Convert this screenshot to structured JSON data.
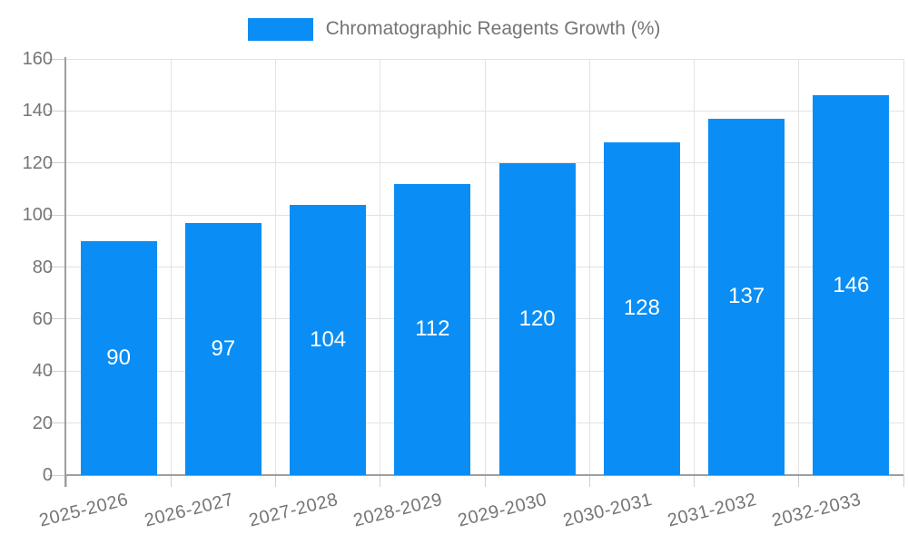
{
  "chart_data": {
    "type": "bar",
    "title": "Chromatographic Reagents Growth (%)",
    "legend_position": "top-center",
    "categories": [
      "2025-2026",
      "2026-2027",
      "2027-2028",
      "2028-2029",
      "2029-2030",
      "2030-2031",
      "2031-2032",
      "2032-2033"
    ],
    "series": [
      {
        "name": "Chromatographic Reagents Growth (%)",
        "values": [
          90,
          97,
          104,
          112,
          120,
          128,
          137,
          146
        ]
      }
    ],
    "value_labels_position": "inside-center",
    "xlabel": "",
    "ylabel": "",
    "ylim": [
      0,
      160
    ],
    "ytick_step": 20,
    "yticks": [
      0,
      20,
      40,
      60,
      80,
      100,
      120,
      140,
      160
    ],
    "grid": true,
    "colors": {
      "bar": "#0A8EF5",
      "gridline": "#e2e2e2",
      "tick": "#cfcfcf",
      "axis_line": "#9e9e9e",
      "axis_text": "#757575",
      "value_text": "#ffffff",
      "background": "#ffffff"
    }
  }
}
